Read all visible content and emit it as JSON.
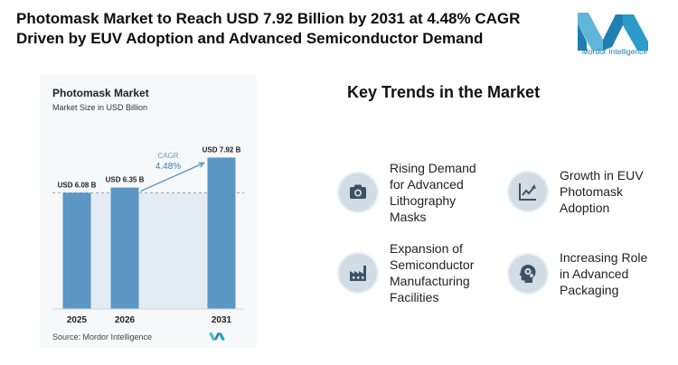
{
  "headline": "Photomask Market to Reach USD 7.92 Billion by 2031 at 4.48% CAGR Driven by EUV Adoption and Advanced Semiconductor Demand",
  "brand": {
    "name": "Mordor Intelligence",
    "color": "#2e86c1"
  },
  "chart_data": {
    "type": "bar",
    "title": "Photomask Market",
    "subtitle": "Market Size in USD Billion",
    "categories": [
      "2025",
      "2026",
      "2031"
    ],
    "values": [
      6.08,
      6.35,
      7.92
    ],
    "data_labels": [
      "USD 6.08 B",
      "USD 6.35 B",
      "USD 7.92 B"
    ],
    "annotation": {
      "label": "CAGR",
      "value": "4.48%"
    },
    "source": "Source: Mordor Intelligence",
    "bar_color": "#5b97c2",
    "ylim": [
      0,
      8.6
    ],
    "grid": false,
    "dashed_reference_at": 6.08
  },
  "trends": {
    "title": "Key Trends in the Market",
    "items": [
      {
        "label": "Rising Demand for Advanced Lithography Masks",
        "icon": "camera-icon"
      },
      {
        "label": "Growth in EUV Photomask Adoption",
        "icon": "growth-chart-icon"
      },
      {
        "label": "Expansion of Semiconductor Manufacturing Facilities",
        "icon": "factory-icon"
      },
      {
        "label": "Increasing Role in Advanced Packaging",
        "icon": "head-gears-icon"
      }
    ]
  }
}
